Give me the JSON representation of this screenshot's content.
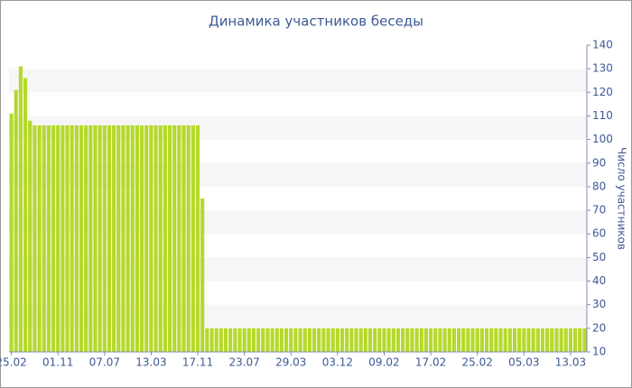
{
  "chart_data": {
    "type": "bar",
    "title": "Динамика участников беседы",
    "y_label": "Число участников",
    "categories": [
      "25.02",
      null,
      null,
      null,
      null,
      null,
      null,
      null,
      null,
      null,
      "01.11",
      null,
      null,
      null,
      null,
      null,
      null,
      null,
      null,
      null,
      "07.07",
      null,
      null,
      null,
      null,
      null,
      null,
      null,
      null,
      null,
      "13.03",
      null,
      null,
      null,
      null,
      null,
      null,
      null,
      null,
      null,
      "17.11",
      null,
      null,
      null,
      null,
      null,
      null,
      null,
      null,
      null,
      "23.07",
      null,
      null,
      null,
      null,
      null,
      null,
      null,
      null,
      null,
      "29.03",
      null,
      null,
      null,
      null,
      null,
      null,
      null,
      null,
      null,
      "03.12",
      null,
      null,
      null,
      null,
      null,
      null,
      null,
      null,
      null,
      "09.02",
      null,
      null,
      null,
      null,
      null,
      null,
      null,
      null,
      null,
      "17.02",
      null,
      null,
      null,
      null,
      null,
      null,
      null,
      null,
      null,
      "25.02",
      null,
      null,
      null,
      null,
      null,
      null,
      null,
      null,
      null,
      "05.03",
      null,
      null,
      null,
      null,
      null,
      null,
      null,
      null,
      null,
      "13.03",
      null,
      null,
      null
    ],
    "values": [
      111,
      121,
      131,
      126,
      108,
      106,
      106,
      106,
      106,
      106,
      106,
      106,
      106,
      106,
      106,
      106,
      106,
      106,
      106,
      106,
      106,
      106,
      106,
      106,
      106,
      106,
      106,
      106,
      106,
      106,
      106,
      106,
      106,
      106,
      106,
      106,
      106,
      106,
      106,
      106,
      106,
      75,
      20,
      20,
      20,
      20,
      20,
      20,
      20,
      20,
      20,
      20,
      20,
      20,
      20,
      20,
      20,
      20,
      20,
      20,
      20,
      20,
      20,
      20,
      20,
      20,
      20,
      20,
      20,
      20,
      20,
      20,
      20,
      20,
      20,
      20,
      20,
      20,
      20,
      20,
      20,
      20,
      20,
      20,
      20,
      20,
      20,
      20,
      20,
      20,
      20,
      20,
      20,
      20,
      20,
      20,
      20,
      20,
      20,
      20,
      20,
      20,
      20,
      20,
      20,
      20,
      20,
      20,
      20,
      20,
      20,
      20,
      20,
      20,
      20,
      20,
      20,
      20,
      20,
      20,
      20,
      20,
      20,
      20
    ],
    "color": "#b5d92b",
    "ylim": [
      10,
      140
    ],
    "yticks": [
      10,
      20,
      30,
      40,
      50,
      60,
      70,
      80,
      90,
      100,
      110,
      120,
      130,
      140
    ],
    "y_axis_side": "right",
    "grid": true
  }
}
